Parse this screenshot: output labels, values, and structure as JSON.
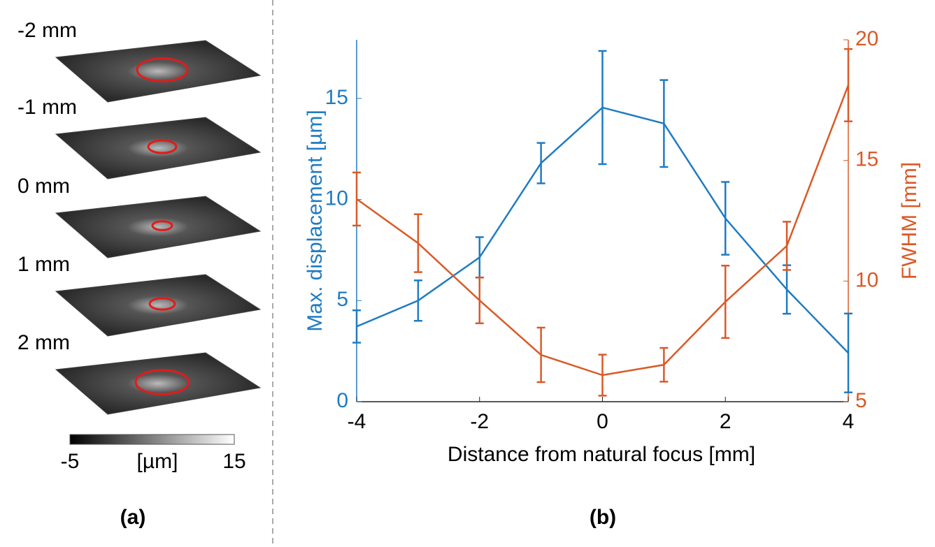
{
  "chart_data": {
    "type": "line",
    "xlabel": "Distance from natural focus [mm]",
    "ylabel": "Max. displacement [µm]",
    "y2label": "FWHM [mm]",
    "x": [
      -4,
      -3,
      -2,
      -1,
      0,
      1,
      2,
      3,
      4
    ],
    "xlim": [
      -4,
      4
    ],
    "xticks": [
      -4,
      -2,
      0,
      2,
      4
    ],
    "ylim": [
      0,
      17.9
    ],
    "yticks": [
      0,
      5,
      10,
      15
    ],
    "y2lim": [
      5,
      20
    ],
    "y2ticks": [
      5,
      10,
      15,
      20
    ],
    "series": [
      {
        "color": "#1f7bc1",
        "axis": "y",
        "values": [
          3.72,
          5.0,
          7.14,
          11.8,
          14.55,
          13.76,
          9.07,
          5.55,
          2.41
        ],
        "errors": [
          0.8,
          1.0,
          1.0,
          1.0,
          2.8,
          2.15,
          1.8,
          1.2,
          1.95
        ]
      },
      {
        "color": "#d95a28",
        "axis": "y2",
        "values": [
          13.4,
          11.57,
          9.2,
          6.94,
          6.1,
          6.53,
          9.14,
          11.46,
          18.12
        ],
        "errors": [
          1.1,
          1.2,
          0.95,
          1.13,
          0.85,
          0.7,
          1.5,
          1.0,
          1.5
        ]
      }
    ]
  },
  "panel_a": {
    "slices": [
      "-2 mm",
      "-1 mm",
      "0 mm",
      "1 mm",
      "2 mm"
    ],
    "colorbar": {
      "label": "[µm]",
      "ticks": [
        -5,
        15
      ]
    }
  },
  "panel_labels": [
    "(a)",
    "(b)"
  ]
}
